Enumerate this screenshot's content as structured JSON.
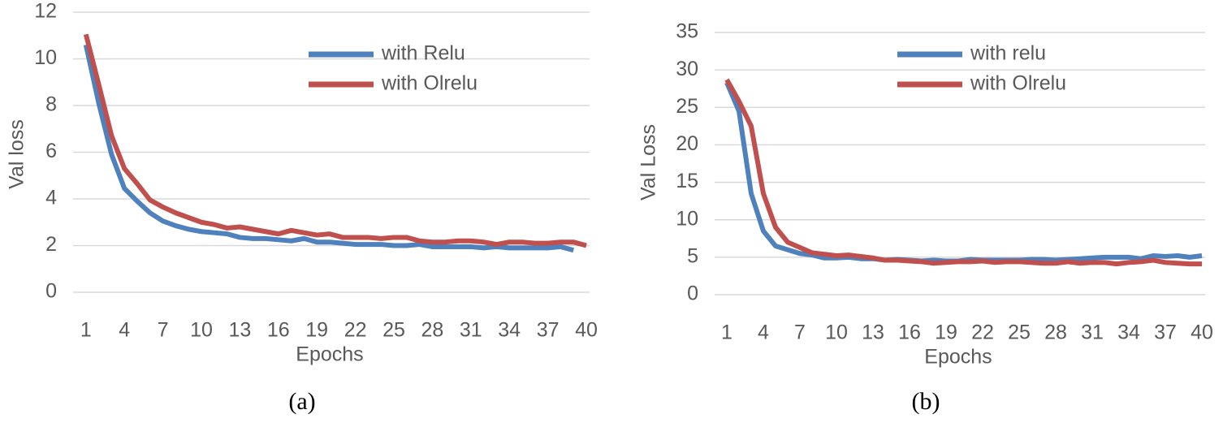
{
  "chart_data": [
    {
      "type": "line",
      "caption": "(a)",
      "xlabel": "Epochs",
      "ylabel": "Val loss",
      "x": [
        1,
        2,
        3,
        4,
        5,
        6,
        7,
        8,
        9,
        10,
        11,
        12,
        13,
        14,
        15,
        16,
        17,
        18,
        19,
        20,
        21,
        22,
        23,
        24,
        25,
        26,
        27,
        28,
        29,
        30,
        31,
        32,
        33,
        34,
        35,
        36,
        37,
        38,
        39,
        40
      ],
      "xlim": [
        0,
        40
      ],
      "xticks": [
        1,
        4,
        7,
        10,
        13,
        16,
        19,
        22,
        25,
        28,
        31,
        34,
        37,
        40
      ],
      "ylim": [
        0,
        12
      ],
      "yticks": [
        0,
        2,
        4,
        6,
        8,
        10,
        12
      ],
      "grid": true,
      "series": [
        {
          "name": "with Relu",
          "color": "#4f81bd",
          "values": [
            10.6,
            8.1,
            5.9,
            4.45,
            3.9,
            3.4,
            3.05,
            2.85,
            2.7,
            2.6,
            2.55,
            2.5,
            2.35,
            2.3,
            2.3,
            2.25,
            2.2,
            2.3,
            2.15,
            2.15,
            2.1,
            2.05,
            2.05,
            2.05,
            2.0,
            2.0,
            2.05,
            1.95,
            1.95,
            1.95,
            1.95,
            1.9,
            1.95,
            1.9,
            1.9,
            1.9,
            1.9,
            1.95,
            1.8,
            null
          ]
        },
        {
          "name": "with Olrelu",
          "color": "#c0504d",
          "values": [
            11.05,
            8.9,
            6.7,
            5.3,
            4.65,
            3.95,
            3.65,
            3.4,
            3.2,
            3.0,
            2.9,
            2.75,
            2.8,
            2.7,
            2.6,
            2.5,
            2.65,
            2.55,
            2.45,
            2.5,
            2.35,
            2.35,
            2.35,
            2.3,
            2.35,
            2.35,
            2.2,
            2.15,
            2.15,
            2.2,
            2.2,
            2.15,
            2.05,
            2.15,
            2.15,
            2.1,
            2.1,
            2.15,
            2.15,
            2.0
          ]
        }
      ]
    },
    {
      "type": "line",
      "caption": "(b)",
      "xlabel": "Epochs",
      "ylabel": "Val Loss",
      "x": [
        1,
        2,
        3,
        4,
        5,
        6,
        7,
        8,
        9,
        10,
        11,
        12,
        13,
        14,
        15,
        16,
        17,
        18,
        19,
        20,
        21,
        22,
        23,
        24,
        25,
        26,
        27,
        28,
        29,
        30,
        31,
        32,
        33,
        34,
        35,
        36,
        37,
        38,
        39,
        40
      ],
      "xlim": [
        0,
        40
      ],
      "xticks": [
        1,
        4,
        7,
        10,
        13,
        16,
        19,
        22,
        25,
        28,
        31,
        34,
        37,
        40
      ],
      "ylim": [
        0,
        35
      ],
      "yticks": [
        0,
        5,
        10,
        15,
        20,
        25,
        30,
        35
      ],
      "grid": true,
      "series": [
        {
          "name": "with relu",
          "color": "#4f81bd",
          "values": [
            28.3,
            24.5,
            13.5,
            8.5,
            6.5,
            6.0,
            5.5,
            5.3,
            4.9,
            4.9,
            5.0,
            4.8,
            4.8,
            4.6,
            4.7,
            4.6,
            4.5,
            4.6,
            4.5,
            4.5,
            4.7,
            4.6,
            4.6,
            4.6,
            4.6,
            4.7,
            4.7,
            4.6,
            4.7,
            4.8,
            4.9,
            5.0,
            5.0,
            5.0,
            4.8,
            5.2,
            5.1,
            5.2,
            5.0,
            5.2
          ]
        },
        {
          "name": "with Olrelu",
          "color": "#c0504d",
          "values": [
            28.7,
            25.8,
            22.5,
            13.5,
            9.0,
            7.0,
            6.3,
            5.6,
            5.4,
            5.2,
            5.3,
            5.1,
            4.9,
            4.6,
            4.6,
            4.5,
            4.4,
            4.2,
            4.3,
            4.4,
            4.4,
            4.5,
            4.3,
            4.4,
            4.4,
            4.3,
            4.2,
            4.2,
            4.4,
            4.2,
            4.3,
            4.3,
            4.1,
            4.3,
            4.4,
            4.6,
            4.3,
            4.2,
            4.1,
            4.1
          ]
        }
      ]
    }
  ]
}
